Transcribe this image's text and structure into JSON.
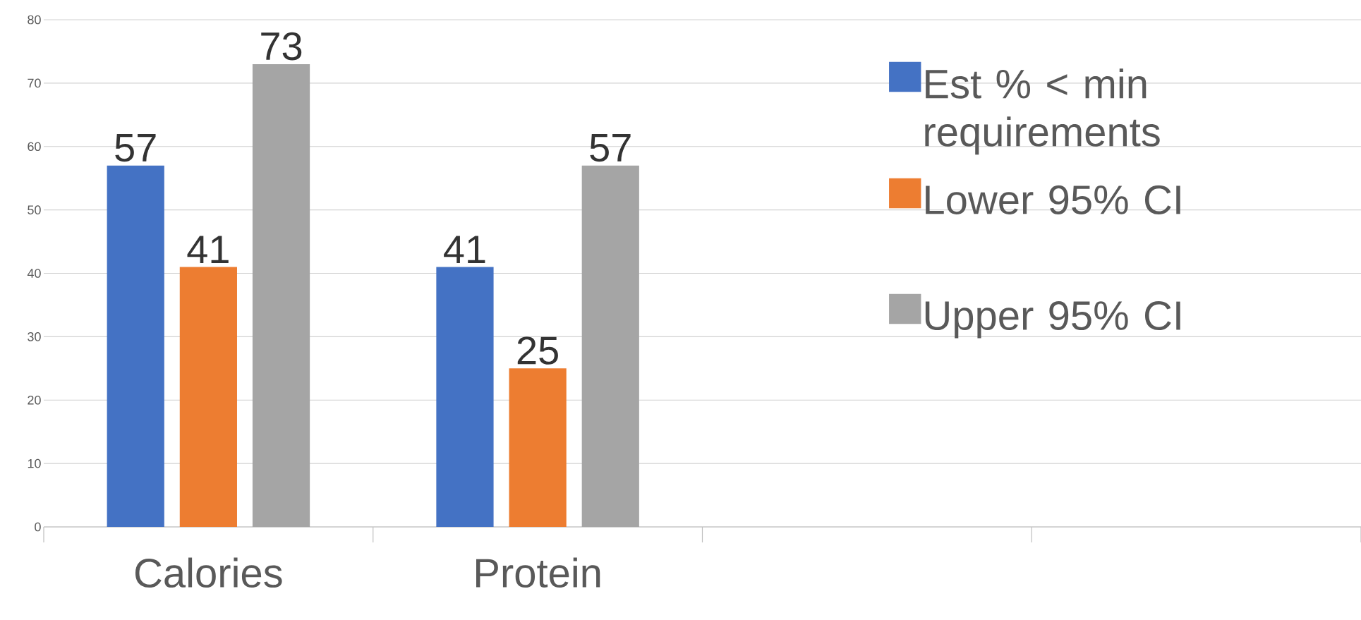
{
  "chart_data": {
    "type": "bar",
    "categories": [
      "Calories",
      "Protein",
      null,
      null
    ],
    "series": [
      {
        "name": "Est % < min requirements",
        "color": "#4472c4",
        "values": [
          57,
          41,
          null,
          null
        ]
      },
      {
        "name": "Lower 95% CI",
        "color": "#ed7d31",
        "values": [
          41,
          25,
          null,
          null
        ]
      },
      {
        "name": "Upper 95% CI",
        "color": "#a5a5a5",
        "values": [
          73,
          57,
          null,
          null
        ]
      }
    ],
    "ylim": [
      0,
      80
    ],
    "yticks": [
      0,
      10,
      20,
      30,
      40,
      50,
      60,
      70,
      80
    ],
    "grid": "y",
    "legend": "right",
    "data_labels": true
  }
}
